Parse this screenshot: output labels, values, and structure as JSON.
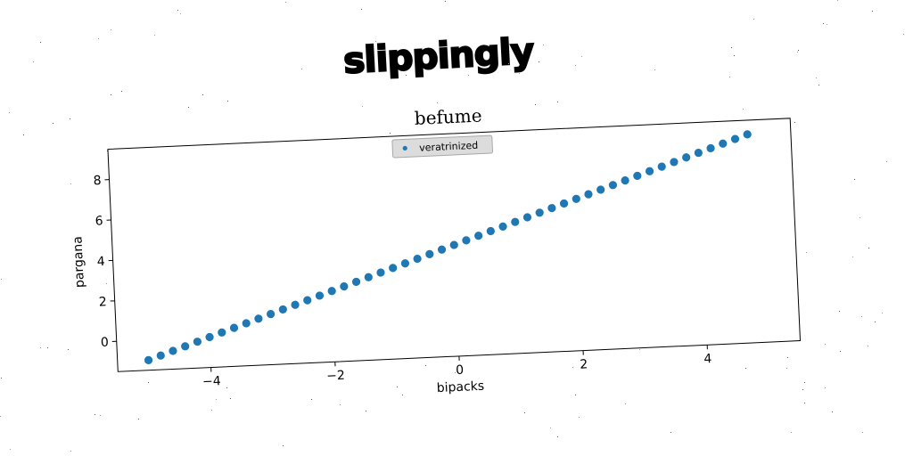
{
  "heading": "slippingly",
  "chart_data": {
    "type": "scatter",
    "title": "befume",
    "xlabel": "bipacks",
    "ylabel": "pargana",
    "xlim": [
      -5.5,
      5.5
    ],
    "ylim": [
      -1.5,
      9.5
    ],
    "xticks": [
      -4,
      -2,
      0,
      2,
      4
    ],
    "yticks": [
      0,
      2,
      4,
      6,
      8
    ],
    "grid": false,
    "legend": "top-center",
    "series": [
      {
        "name": "veratrinized",
        "color": "#1f77b4",
        "x": [
          -5.0,
          -4.8,
          -4.6,
          -4.4,
          -4.2,
          -4.0,
          -3.8,
          -3.6,
          -3.4,
          -3.2,
          -3.0,
          -2.8,
          -2.6,
          -2.4,
          -2.2,
          -2.0,
          -1.8,
          -1.6,
          -1.4,
          -1.2,
          -1.0,
          -0.8,
          -0.6,
          -0.4,
          -0.2,
          0.0,
          0.2,
          0.4,
          0.6,
          0.8,
          1.0,
          1.2,
          1.4,
          1.6,
          1.8,
          2.0,
          2.2,
          2.4,
          2.6,
          2.8,
          3.0,
          3.2,
          3.4,
          3.6,
          3.8,
          4.0,
          4.2,
          4.4,
          4.6,
          4.8
        ],
        "y": [
          -1.0,
          -0.8,
          -0.6,
          -0.4,
          -0.2,
          0.0,
          0.2,
          0.4,
          0.6,
          0.8,
          1.0,
          1.2,
          1.4,
          1.6,
          1.8,
          2.0,
          2.2,
          2.4,
          2.6,
          2.8,
          3.0,
          3.2,
          3.4,
          3.6,
          3.8,
          4.0,
          4.2,
          4.4,
          4.6,
          4.8,
          5.0,
          5.2,
          5.4,
          5.6,
          5.8,
          6.0,
          6.2,
          6.4,
          6.6,
          6.8,
          7.0,
          7.2,
          7.4,
          7.6,
          7.8,
          8.0,
          8.2,
          8.4,
          8.6,
          8.8
        ]
      }
    ]
  }
}
